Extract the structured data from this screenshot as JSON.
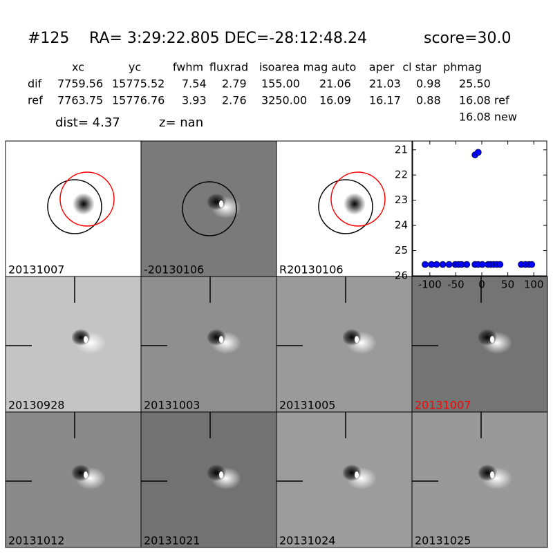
{
  "header": {
    "id": "#125",
    "coords": "RA= 3:29:22.805 DEC=-28:12:48.24",
    "score": "score=30.0"
  },
  "table": {
    "columns": [
      "xc",
      "yc",
      "fwhm",
      "fluxrad",
      "isoarea",
      "mag auto",
      "aper",
      "cl star",
      "phmag"
    ],
    "rows": [
      [
        "dif",
        "7759.56",
        "15775.52",
        "7.54",
        "2.79",
        "155.00",
        "21.06",
        "21.03",
        "0.98",
        "25.50"
      ],
      [
        "ref",
        "7763.75",
        "15776.76",
        "3.93",
        "2.76",
        "3250.00",
        "16.09",
        "16.17",
        "0.88",
        "16.08 ref"
      ]
    ],
    "extra": "16.08 new"
  },
  "dist": "dist=  4.37",
  "z": "z=   nan",
  "panels": [
    {
      "label": "20131007"
    },
    {
      "label": "-20130106"
    },
    {
      "label": "R20130106"
    },
    {
      "label": "20130928"
    },
    {
      "label": "20131003"
    },
    {
      "label": "20131005"
    },
    {
      "label": "20131007",
      "label_color": "#ff0000"
    },
    {
      "label": "20131012"
    },
    {
      "label": "20131021"
    },
    {
      "label": "20131024"
    },
    {
      "label": "20131025"
    }
  ],
  "chart_data": {
    "type": "scatter",
    "color": "#0000ff",
    "x": [
      -109,
      -97,
      -87,
      -75,
      -63,
      -51,
      -45,
      -39,
      -29,
      -13,
      -7,
      1,
      12,
      17,
      23,
      29,
      35,
      76,
      84,
      91,
      96,
      -13,
      -7
    ],
    "values": [
      25.55,
      25.55,
      25.55,
      25.55,
      25.55,
      25.55,
      25.55,
      25.55,
      25.55,
      25.55,
      25.55,
      25.55,
      25.55,
      25.55,
      25.55,
      25.55,
      25.55,
      25.55,
      25.55,
      25.55,
      25.55,
      21.2,
      21.1
    ],
    "xlim": [
      -133,
      125
    ],
    "ylim": [
      26,
      20.65
    ],
    "xticks": [
      -100,
      -50,
      0,
      50,
      100
    ],
    "yticks": [
      21,
      22,
      23,
      24,
      25,
      26
    ]
  }
}
